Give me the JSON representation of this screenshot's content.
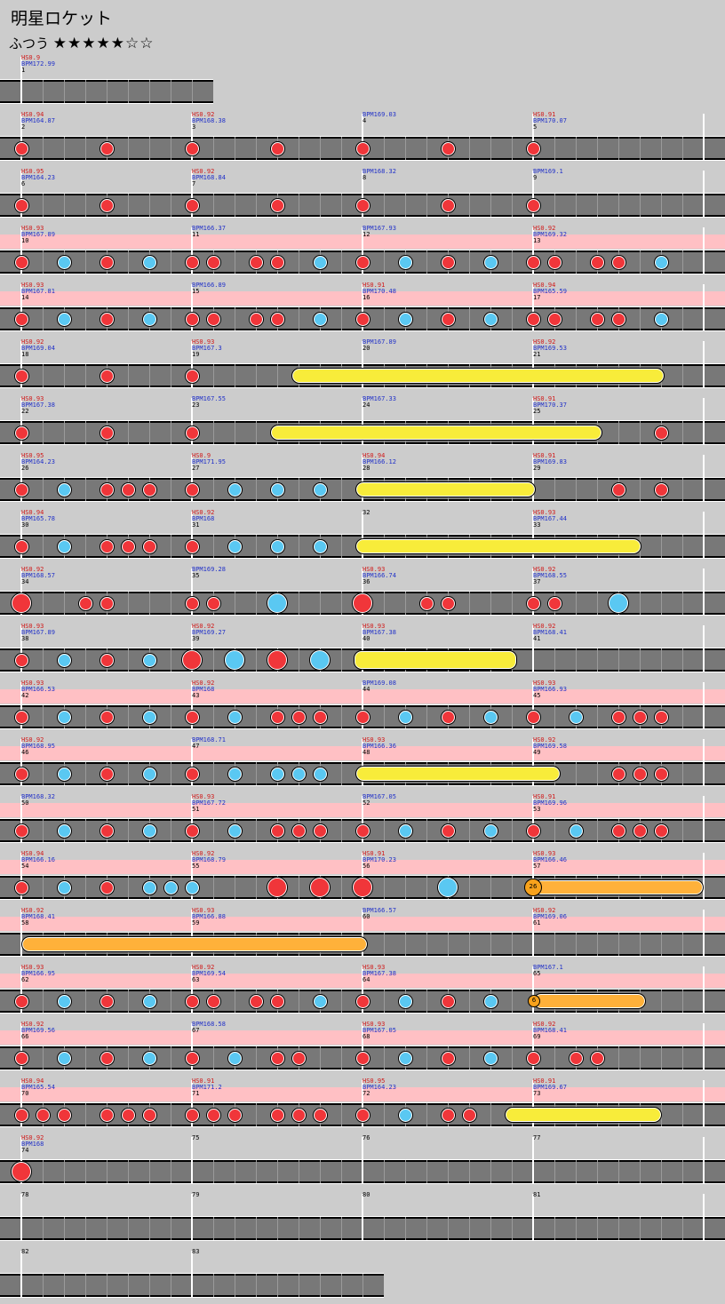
{
  "song": {
    "title": "明星ロケット",
    "difficulty": "ふつう",
    "stars": "★★★★★☆☆"
  },
  "rows": [
    {
      "measures": [
        {
          "hs": "HS0.9",
          "bpm": "BPM172.99",
          "num": "1"
        }
      ]
    },
    {
      "measures": [
        {
          "hs": "HS0.94",
          "bpm": "BPM164.87",
          "num": "2"
        },
        {
          "hs": "HS0.92",
          "bpm": "BPM168.38",
          "num": "3"
        },
        {
          "hs": "",
          "bpm": "BPM169.03",
          "num": "4"
        },
        {
          "hs": "HS0.91",
          "bpm": "BPM170.07",
          "num": "5"
        }
      ]
    },
    {
      "measures": [
        {
          "hs": "HS0.95",
          "bpm": "BPM164.23",
          "num": "6"
        },
        {
          "hs": "HS0.92",
          "bpm": "BPM168.84",
          "num": "7"
        },
        {
          "hs": "",
          "bpm": "BPM168.32",
          "num": "8"
        },
        {
          "hs": "",
          "bpm": "BPM169.1",
          "num": "9"
        }
      ]
    },
    {
      "measures": [
        {
          "hs": "HS0.93",
          "bpm": "BPM167.89",
          "num": "10"
        },
        {
          "hs": "",
          "bpm": "BPM166.37",
          "num": "11"
        },
        {
          "hs": "",
          "bpm": "BPM167.93",
          "num": "12"
        },
        {
          "hs": "HS0.92",
          "bpm": "BPM169.32",
          "num": "13"
        }
      ]
    },
    {
      "measures": [
        {
          "hs": "HS0.93",
          "bpm": "BPM167.81",
          "num": "14"
        },
        {
          "hs": "",
          "bpm": "BPM166.89",
          "num": "15"
        },
        {
          "hs": "HS0.91",
          "bpm": "BPM170.48",
          "num": "16"
        },
        {
          "hs": "HS0.94",
          "bpm": "BPM165.59",
          "num": "17"
        }
      ]
    },
    {
      "measures": [
        {
          "hs": "HS0.92",
          "bpm": "BPM169.04",
          "num": "18"
        },
        {
          "hs": "HS0.93",
          "bpm": "BPM167.3",
          "num": "19"
        },
        {
          "hs": "",
          "bpm": "BPM167.89",
          "num": "20"
        },
        {
          "hs": "HS0.92",
          "bpm": "BPM169.53",
          "num": "21"
        }
      ]
    },
    {
      "measures": [
        {
          "hs": "HS0.93",
          "bpm": "BPM167.38",
          "num": "22"
        },
        {
          "hs": "",
          "bpm": "BPM167.55",
          "num": "23"
        },
        {
          "hs": "",
          "bpm": "BPM167.33",
          "num": "24"
        },
        {
          "hs": "HS0.91",
          "bpm": "BPM170.37",
          "num": "25"
        }
      ]
    },
    {
      "measures": [
        {
          "hs": "HS0.95",
          "bpm": "BPM164.23",
          "num": "26"
        },
        {
          "hs": "HS0.9",
          "bpm": "BPM171.95",
          "num": "27"
        },
        {
          "hs": "HS0.94",
          "bpm": "BPM166.12",
          "num": "28"
        },
        {
          "hs": "HS0.91",
          "bpm": "BPM169.83",
          "num": "29"
        }
      ]
    },
    {
      "measures": [
        {
          "hs": "HS0.94",
          "bpm": "BPM165.78",
          "num": "30"
        },
        {
          "hs": "HS0.92",
          "bpm": "BPM168",
          "num": "31"
        },
        {
          "hs": "",
          "bpm": "",
          "num": "32"
        },
        {
          "hs": "HS0.93",
          "bpm": "BPM167.44",
          "num": "33"
        }
      ]
    },
    {
      "measures": [
        {
          "hs": "HS0.92",
          "bpm": "BPM168.57",
          "num": "34"
        },
        {
          "hs": "",
          "bpm": "BPM169.28",
          "num": "35"
        },
        {
          "hs": "HS0.93",
          "bpm": "BPM166.74",
          "num": "36"
        },
        {
          "hs": "HS0.92",
          "bpm": "BPM168.55",
          "num": "37"
        }
      ]
    },
    {
      "measures": [
        {
          "hs": "HS0.93",
          "bpm": "BPM167.89",
          "num": "38"
        },
        {
          "hs": "HS0.92",
          "bpm": "BPM169.27",
          "num": "39"
        },
        {
          "hs": "HS0.93",
          "bpm": "BPM167.38",
          "num": "40"
        },
        {
          "hs": "HS0.92",
          "bpm": "BPM168.41",
          "num": "41"
        }
      ]
    },
    {
      "measures": [
        {
          "hs": "HS0.93",
          "bpm": "BPM166.53",
          "num": "42"
        },
        {
          "hs": "HS0.92",
          "bpm": "BPM168",
          "num": "43"
        },
        {
          "hs": "",
          "bpm": "BPM169.08",
          "num": "44"
        },
        {
          "hs": "HS0.93",
          "bpm": "BPM166.93",
          "num": "45"
        }
      ]
    },
    {
      "measures": [
        {
          "hs": "HS0.92",
          "bpm": "BPM168.95",
          "num": "46"
        },
        {
          "hs": "",
          "bpm": "BPM168.71",
          "num": "47"
        },
        {
          "hs": "HS0.93",
          "bpm": "BPM166.36",
          "num": "48"
        },
        {
          "hs": "HS0.92",
          "bpm": "BPM169.58",
          "num": "49"
        }
      ]
    },
    {
      "measures": [
        {
          "hs": "",
          "bpm": "BPM168.32",
          "num": "50"
        },
        {
          "hs": "HS0.93",
          "bpm": "BPM167.72",
          "num": "51"
        },
        {
          "hs": "",
          "bpm": "BPM167.05",
          "num": "52"
        },
        {
          "hs": "HS0.91",
          "bpm": "BPM169.96",
          "num": "53"
        }
      ]
    },
    {
      "measures": [
        {
          "hs": "HS0.94",
          "bpm": "BPM166.16",
          "num": "54"
        },
        {
          "hs": "HS0.92",
          "bpm": "BPM168.79",
          "num": "55"
        },
        {
          "hs": "HS0.91",
          "bpm": "BPM170.23",
          "num": "56"
        },
        {
          "hs": "HS0.93",
          "bpm": "BPM166.46",
          "num": "57"
        }
      ]
    },
    {
      "measures": [
        {
          "hs": "HS0.92",
          "bpm": "BPM168.41",
          "num": "58"
        },
        {
          "hs": "HS0.93",
          "bpm": "BPM166.88",
          "num": "59"
        },
        {
          "hs": "",
          "bpm": "BPM166.57",
          "num": "60"
        },
        {
          "hs": "HS0.92",
          "bpm": "BPM169.06",
          "num": "61"
        }
      ]
    },
    {
      "measures": [
        {
          "hs": "HS0.93",
          "bpm": "BPM166.95",
          "num": "62"
        },
        {
          "hs": "HS0.92",
          "bpm": "BPM169.54",
          "num": "63"
        },
        {
          "hs": "HS0.93",
          "bpm": "BPM167.38",
          "num": "64"
        },
        {
          "hs": "",
          "bpm": "BPM167.1",
          "num": "65"
        }
      ]
    },
    {
      "measures": [
        {
          "hs": "HS0.92",
          "bpm": "BPM169.56",
          "num": "66"
        },
        {
          "hs": "",
          "bpm": "BPM168.58",
          "num": "67"
        },
        {
          "hs": "HS0.93",
          "bpm": "BPM167.05",
          "num": "68"
        },
        {
          "hs": "HS0.92",
          "bpm": "BPM168.41",
          "num": "69"
        }
      ]
    },
    {
      "measures": [
        {
          "hs": "HS0.94",
          "bpm": "BPM165.54",
          "num": "70"
        },
        {
          "hs": "HS0.91",
          "bpm": "BPM171.2",
          "num": "71"
        },
        {
          "hs": "HS0.95",
          "bpm": "BPM164.23",
          "num": "72"
        },
        {
          "hs": "HS0.91",
          "bpm": "BPM169.67",
          "num": "73"
        }
      ]
    },
    {
      "measures": [
        {
          "hs": "HS0.92",
          "bpm": "BPM168",
          "num": "74"
        },
        {
          "hs": "",
          "bpm": "",
          "num": "75"
        },
        {
          "hs": "",
          "bpm": "",
          "num": "76"
        },
        {
          "hs": "",
          "bpm": "",
          "num": "77"
        }
      ]
    },
    {
      "measures": [
        {
          "hs": "",
          "bpm": "",
          "num": "78"
        },
        {
          "hs": "",
          "bpm": "",
          "num": "79"
        },
        {
          "hs": "",
          "bpm": "",
          "num": "80"
        },
        {
          "hs": "",
          "bpm": "",
          "num": "81"
        }
      ]
    },
    {
      "measures": [
        {
          "hs": "",
          "bpm": "",
          "num": "82"
        },
        {
          "hs": "",
          "bpm": "",
          "num": "83"
        }
      ]
    }
  ],
  "balloons": [
    {
      "row": 14,
      "hits": "26"
    },
    {
      "row": 16,
      "hits": "6"
    }
  ],
  "colors": {
    "don": "#f0363a",
    "ka": "#5ac8f2",
    "roll": "#f8ec3a",
    "balloon": "#ffb13a",
    "lane": "#787878",
    "highlight": "#ffc0c4",
    "background": "#cccccc"
  }
}
